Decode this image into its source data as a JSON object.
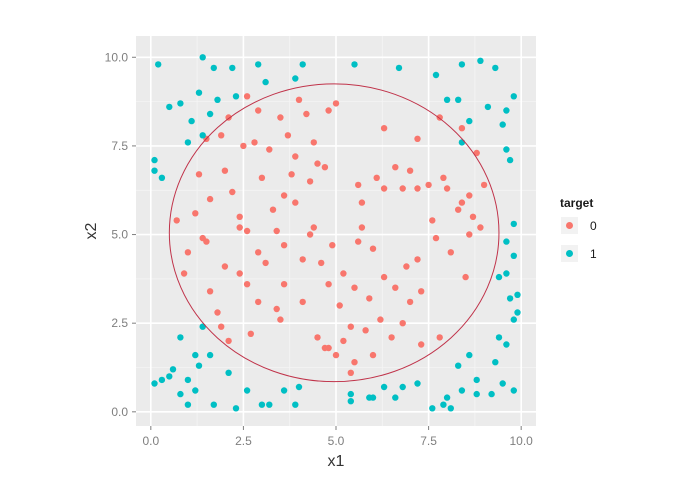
{
  "chart_data": {
    "type": "scatter",
    "xlabel": "x1",
    "ylabel": "x2",
    "xlim": [
      -0.4,
      10.4
    ],
    "ylim": [
      -0.4,
      10.6
    ],
    "xticks": [
      0.0,
      2.5,
      5.0,
      7.5,
      10.0
    ],
    "xtick_labels": [
      "0.0",
      "2.5",
      "5.0",
      "7.5",
      "10.0"
    ],
    "yticks": [
      0.0,
      2.5,
      5.0,
      7.5,
      10.0
    ],
    "ytick_labels": [
      "0.0",
      "2.5",
      "5.0",
      "7.5",
      "10.0"
    ],
    "grid": true,
    "legend": {
      "title": "target",
      "placement": "right"
    },
    "circle": {
      "center": [
        4.95,
        5.05
      ],
      "radius_x": 4.45,
      "radius_y": 4.2,
      "color": "#c0334a"
    },
    "series": [
      {
        "name": "0",
        "color": "#f8766d",
        "points": [
          [
            2.6,
            8.9
          ],
          [
            4.0,
            8.8
          ],
          [
            4.8,
            8.5
          ],
          [
            5.0,
            8.7
          ],
          [
            2.1,
            8.3
          ],
          [
            2.9,
            8.5
          ],
          [
            3.5,
            8.3
          ],
          [
            4.2,
            8.4
          ],
          [
            1.9,
            7.8
          ],
          [
            2.8,
            7.6
          ],
          [
            3.7,
            7.8
          ],
          [
            4.4,
            7.6
          ],
          [
            6.3,
            8.0
          ],
          [
            7.2,
            7.7
          ],
          [
            7.8,
            8.3
          ],
          [
            8.4,
            8.0
          ],
          [
            1.5,
            7.7
          ],
          [
            2.5,
            7.5
          ],
          [
            3.2,
            7.4
          ],
          [
            3.9,
            7.2
          ],
          [
            4.5,
            7.0
          ],
          [
            4.7,
            6.9
          ],
          [
            6.6,
            6.9
          ],
          [
            7.0,
            6.8
          ],
          [
            7.9,
            6.6
          ],
          [
            8.8,
            7.3
          ],
          [
            1.3,
            6.7
          ],
          [
            2.0,
            6.8
          ],
          [
            3.0,
            6.6
          ],
          [
            3.8,
            6.7
          ],
          [
            4.3,
            6.5
          ],
          [
            6.1,
            6.6
          ],
          [
            7.5,
            6.4
          ],
          [
            8.0,
            6.3
          ],
          [
            8.6,
            6.1
          ],
          [
            9.0,
            6.4
          ],
          [
            1.6,
            6.0
          ],
          [
            2.2,
            6.2
          ],
          [
            3.6,
            6.1
          ],
          [
            5.6,
            6.4
          ],
          [
            6.3,
            6.3
          ],
          [
            6.8,
            6.3
          ],
          [
            7.2,
            6.3
          ],
          [
            8.4,
            5.9
          ],
          [
            0.7,
            5.4
          ],
          [
            1.2,
            5.6
          ],
          [
            2.4,
            5.5
          ],
          [
            3.3,
            5.7
          ],
          [
            3.9,
            5.9
          ],
          [
            5.7,
            5.9
          ],
          [
            7.6,
            5.4
          ],
          [
            8.3,
            5.7
          ],
          [
            8.7,
            5.5
          ],
          [
            1.4,
            4.9
          ],
          [
            2.4,
            5.2
          ],
          [
            2.6,
            5.1
          ],
          [
            3.4,
            5.1
          ],
          [
            4.3,
            5.0
          ],
          [
            4.4,
            5.2
          ],
          [
            5.7,
            5.2
          ],
          [
            7.7,
            4.9
          ],
          [
            8.6,
            5.0
          ],
          [
            8.9,
            5.2
          ],
          [
            1.0,
            4.5
          ],
          [
            1.5,
            4.8
          ],
          [
            2.9,
            4.5
          ],
          [
            3.6,
            4.7
          ],
          [
            4.9,
            4.7
          ],
          [
            5.6,
            4.8
          ],
          [
            6.0,
            4.6
          ],
          [
            7.2,
            4.3
          ],
          [
            8.1,
            4.5
          ],
          [
            0.9,
            3.9
          ],
          [
            2.0,
            4.1
          ],
          [
            2.4,
            3.9
          ],
          [
            3.1,
            4.2
          ],
          [
            4.1,
            4.3
          ],
          [
            4.6,
            4.2
          ],
          [
            5.2,
            3.9
          ],
          [
            6.9,
            4.1
          ],
          [
            8.5,
            3.8
          ],
          [
            1.6,
            3.4
          ],
          [
            2.6,
            3.6
          ],
          [
            3.6,
            3.6
          ],
          [
            4.8,
            3.6
          ],
          [
            5.5,
            3.5
          ],
          [
            6.3,
            3.8
          ],
          [
            6.6,
            3.5
          ],
          [
            7.3,
            3.4
          ],
          [
            1.8,
            2.8
          ],
          [
            2.9,
            3.1
          ],
          [
            3.4,
            2.9
          ],
          [
            4.1,
            3.1
          ],
          [
            5.1,
            3.0
          ],
          [
            5.9,
            3.2
          ],
          [
            7.0,
            3.1
          ],
          [
            1.9,
            2.4
          ],
          [
            2.1,
            2.0
          ],
          [
            2.7,
            2.2
          ],
          [
            3.5,
            2.6
          ],
          [
            5.4,
            2.4
          ],
          [
            5.8,
            2.3
          ],
          [
            6.2,
            2.6
          ],
          [
            6.8,
            2.5
          ],
          [
            4.5,
            2.1
          ],
          [
            5.2,
            2.0
          ],
          [
            6.5,
            2.1
          ],
          [
            7.3,
            1.9
          ],
          [
            7.8,
            2.1
          ],
          [
            4.7,
            1.8
          ],
          [
            5.0,
            1.6
          ],
          [
            5.5,
            1.4
          ],
          [
            6.0,
            1.6
          ],
          [
            5.4,
            1.1
          ],
          [
            4.8,
            1.8
          ]
        ]
      },
      {
        "name": "1",
        "color": "#00bfc4",
        "points": [
          [
            0.2,
            9.8
          ],
          [
            1.4,
            10.0
          ],
          [
            1.7,
            9.7
          ],
          [
            2.2,
            9.7
          ],
          [
            2.9,
            9.8
          ],
          [
            4.1,
            9.8
          ],
          [
            5.5,
            9.8
          ],
          [
            6.7,
            9.7
          ],
          [
            8.4,
            9.8
          ],
          [
            8.9,
            9.9
          ],
          [
            9.3,
            9.7
          ],
          [
            7.7,
            9.5
          ],
          [
            3.1,
            9.3
          ],
          [
            3.9,
            9.4
          ],
          [
            1.3,
            9.0
          ],
          [
            1.8,
            8.8
          ],
          [
            2.3,
            8.9
          ],
          [
            8.0,
            8.8
          ],
          [
            8.3,
            8.8
          ],
          [
            9.1,
            8.6
          ],
          [
            9.8,
            8.9
          ],
          [
            9.6,
            8.5
          ],
          [
            0.5,
            8.6
          ],
          [
            0.8,
            8.7
          ],
          [
            1.1,
            8.2
          ],
          [
            1.6,
            8.4
          ],
          [
            8.6,
            8.2
          ],
          [
            9.5,
            8.1
          ],
          [
            1.0,
            7.6
          ],
          [
            1.4,
            7.8
          ],
          [
            8.4,
            7.6
          ],
          [
            0.1,
            7.1
          ],
          [
            0.1,
            6.8
          ],
          [
            0.3,
            6.6
          ],
          [
            9.6,
            7.4
          ],
          [
            9.7,
            7.1
          ],
          [
            9.8,
            5.3
          ],
          [
            9.6,
            4.8
          ],
          [
            9.8,
            4.4
          ],
          [
            9.6,
            3.9
          ],
          [
            9.4,
            3.8
          ],
          [
            9.9,
            3.3
          ],
          [
            9.7,
            3.2
          ],
          [
            9.9,
            2.8
          ],
          [
            9.8,
            2.6
          ],
          [
            1.4,
            2.4
          ],
          [
            0.8,
            2.1
          ],
          [
            9.4,
            2.1
          ],
          [
            9.6,
            1.9
          ],
          [
            1.2,
            1.6
          ],
          [
            1.6,
            1.6
          ],
          [
            8.6,
            1.6
          ],
          [
            9.3,
            1.4
          ],
          [
            0.6,
            1.2
          ],
          [
            1.3,
            1.3
          ],
          [
            2.1,
            1.1
          ],
          [
            8.3,
            1.3
          ],
          [
            0.3,
            0.9
          ],
          [
            0.5,
            1.0
          ],
          [
            1.0,
            0.9
          ],
          [
            0.1,
            0.8
          ],
          [
            8.8,
            0.9
          ],
          [
            9.5,
            0.8
          ],
          [
            0.8,
            0.5
          ],
          [
            1.2,
            0.6
          ],
          [
            2.6,
            0.6
          ],
          [
            3.6,
            0.6
          ],
          [
            4.0,
            0.7
          ],
          [
            6.3,
            0.7
          ],
          [
            6.8,
            0.7
          ],
          [
            8.4,
            0.6
          ],
          [
            8.8,
            0.5
          ],
          [
            9.2,
            0.5
          ],
          [
            9.8,
            0.6
          ],
          [
            1.0,
            0.2
          ],
          [
            2.3,
            0.1
          ],
          [
            3.0,
            0.2
          ],
          [
            3.2,
            0.2
          ],
          [
            3.9,
            0.2
          ],
          [
            5.4,
            0.5
          ],
          [
            5.4,
            0.3
          ],
          [
            6.0,
            0.4
          ],
          [
            6.6,
            0.4
          ],
          [
            7.6,
            0.1
          ],
          [
            7.9,
            0.2
          ],
          [
            8.1,
            0.1
          ],
          [
            1.7,
            0.2
          ],
          [
            7.2,
            0.8
          ],
          [
            5.9,
            0.4
          ],
          [
            8.0,
            0.4
          ]
        ]
      }
    ]
  }
}
